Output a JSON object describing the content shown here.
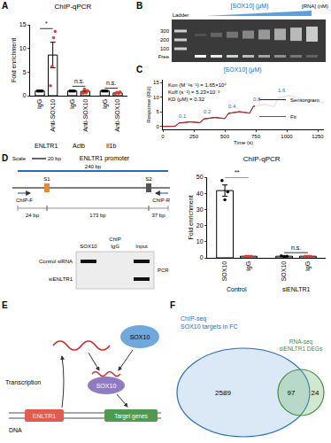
{
  "panel_letters": [
    "A",
    "B",
    "C",
    "D",
    "E",
    "F"
  ],
  "chart_data": [
    {
      "type": "bar",
      "title": "ChIP-qPCR",
      "y_label": "Fold enrichment",
      "categories": [
        "ENLTR1",
        "Actb",
        "Il1b"
      ],
      "series": [
        {
          "name": "IgG",
          "color": "#000000",
          "values": [
            1,
            1,
            1
          ],
          "errors": [
            0,
            0,
            0
          ],
          "points": [
            [
              1,
              1,
              1,
              1
            ],
            [
              1,
              1,
              1,
              1
            ],
            [
              1,
              1,
              1,
              1
            ]
          ]
        },
        {
          "name": "Anti-SOX10",
          "color": "#e8392b",
          "values": [
            8.6,
            0.9,
            0.6
          ],
          "errors": [
            2.7,
            0.2,
            0.1
          ],
          "points": [
            [
              2.1,
              6.2,
              12.3,
              13.6
            ],
            [
              0.5,
              1.4,
              0.6,
              1.1
            ],
            [
              0.4,
              0.7,
              0.5,
              0.8
            ]
          ]
        }
      ],
      "ylim": [
        0,
        15
      ],
      "yticks": [
        0,
        5,
        10,
        15
      ],
      "significance": [
        "*",
        "n.s.",
        "n.s."
      ]
    },
    {
      "type": "line",
      "title": "[SOX10] (μM)",
      "x_label": "Time (s)",
      "y_label": "Response (RU)",
      "xlim": [
        0,
        1300
      ],
      "xticks": [
        0,
        250,
        500,
        750,
        1000,
        1250
      ],
      "ylim": [
        -1,
        16
      ],
      "yticks": [
        0,
        5,
        10,
        15
      ],
      "legend": "bottom right",
      "series": [
        {
          "name": "Sensorgram",
          "color": "#222222",
          "line_style": "solid",
          "x": [
            0,
            100,
            130,
            220,
            300,
            330,
            420,
            500,
            530,
            620,
            700,
            730,
            820,
            900,
            930,
            1020,
            1150,
            1300
          ],
          "values": [
            0,
            0.1,
            1.2,
            1.6,
            1.3,
            2.6,
            3.1,
            2.7,
            4.5,
            5.1,
            4.5,
            6.9,
            7.6,
            6.8,
            9.8,
            10.6,
            9.1,
            8.1
          ]
        },
        {
          "name": "Fit",
          "color": "#d62728",
          "line_style": "solid",
          "x": [
            0,
            100,
            130,
            220,
            300,
            330,
            420,
            500,
            530,
            620,
            700,
            730,
            820,
            900,
            930,
            1020,
            1150,
            1300
          ],
          "values": [
            0,
            0,
            1.1,
            1.5,
            1.3,
            2.5,
            3.0,
            2.7,
            4.4,
            5.0,
            4.6,
            6.8,
            7.5,
            6.9,
            9.7,
            10.5,
            9.2,
            8.2
          ]
        }
      ],
      "annotations": [
        {
          "text": "0.1",
          "x": 160
        },
        {
          "text": "0.2",
          "x": 360
        },
        {
          "text": "0.4",
          "x": 560
        },
        {
          "text": "0.8",
          "x": 760
        },
        {
          "text": "1.6",
          "x": 960
        }
      ],
      "kinetics": [
        "Kon (M⁻¹s⁻¹) = 1.65×10⁴",
        "Koff (s⁻¹) = 5.23×10⁻³",
        "KD (μM) = 0.32"
      ]
    },
    {
      "type": "bar",
      "title": "ChIP-qPCR",
      "y_label": "Fold enrichment",
      "categories": [
        "Control",
        "siENLTR1"
      ],
      "series": [
        {
          "name": "SOX10",
          "color": "#000000",
          "values": [
            41.7,
            1.0
          ],
          "errors": [
            3.5,
            0.1
          ],
          "points": [
            [
              48,
              36,
              41
            ],
            [
              1.2,
              0.8,
              1.0
            ]
          ]
        },
        {
          "name": "IgG",
          "color": "#e8392b",
          "values": [
            1,
            1
          ],
          "errors": [
            0,
            0
          ],
          "points": [
            [
              1,
              1,
              1
            ],
            [
              1,
              1,
              1
            ]
          ]
        }
      ],
      "ylim": [
        0,
        50
      ],
      "yticks": [
        0,
        10,
        20,
        30,
        40,
        50
      ],
      "significance": [
        "**",
        "n.s."
      ]
    }
  ],
  "panel_B": {
    "header": "[SOX10] (μM)",
    "right_header": "[RNA] (nM)",
    "ladder_label": "Ladder",
    "ladder_marks": [
      "300",
      "200",
      "100"
    ],
    "free_label": "Free"
  },
  "panel_D_schematic": {
    "title": "ENLTR1 promoter",
    "scale_word": "Scale",
    "scale_label": "20 bp",
    "length_label": "240 bp",
    "sites": [
      "S1",
      "S2"
    ],
    "primers": [
      "ChIP-F",
      "ChIP-R"
    ],
    "distances": [
      "24 bp",
      "173 bp",
      "37 bp"
    ]
  },
  "panel_D_gel": {
    "header": "ChIP",
    "columns": [
      "SOX10",
      "IgG",
      "Input"
    ],
    "rows": [
      "Control siRNA",
      "siENLTR1"
    ],
    "side_label": "PCR",
    "bands": [
      [
        true,
        false,
        true
      ],
      [
        false,
        false,
        true
      ]
    ]
  },
  "panel_E": {
    "transcription": "Transcription",
    "dna": "DNA",
    "gene": "ENLTR1",
    "protein": "SOX10",
    "target": "Target genes"
  },
  "panel_F": {
    "left_title": [
      "ChIP-seq",
      "SOX10 targets in FC"
    ],
    "right_title": [
      "RNA-seq",
      "siENLTR1 DEGs"
    ],
    "counts": {
      "left_only": 2589,
      "both": 97,
      "right_only": 24
    }
  }
}
